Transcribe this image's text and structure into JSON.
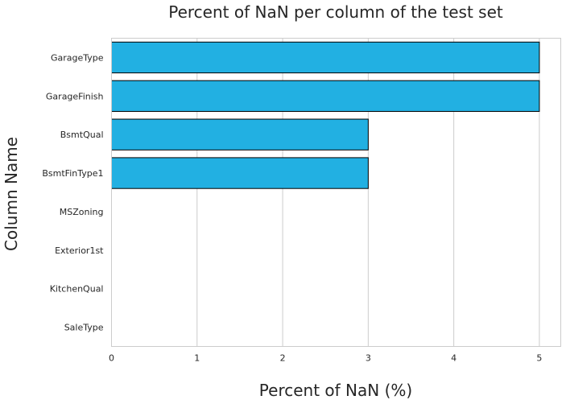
{
  "chart_data": {
    "type": "bar",
    "orientation": "horizontal",
    "title": "Percent of NaN per column of the test set",
    "xlabel": "Percent of NaN (%)",
    "ylabel": "Column Name",
    "categories": [
      "GarageType",
      "GarageFinish",
      "BsmtQual",
      "BsmtFinType1",
      "MSZoning",
      "Exterior1st",
      "KitchenQual",
      "SaleType"
    ],
    "values": [
      5.0,
      5.0,
      3.0,
      3.0,
      0.0,
      0.0,
      0.0,
      0.0
    ],
    "xticks": [
      "0",
      "1",
      "2",
      "3",
      "4",
      "5"
    ],
    "xlim": [
      0,
      5.25
    ],
    "grid": true,
    "bar_color": "#22b0e2"
  }
}
